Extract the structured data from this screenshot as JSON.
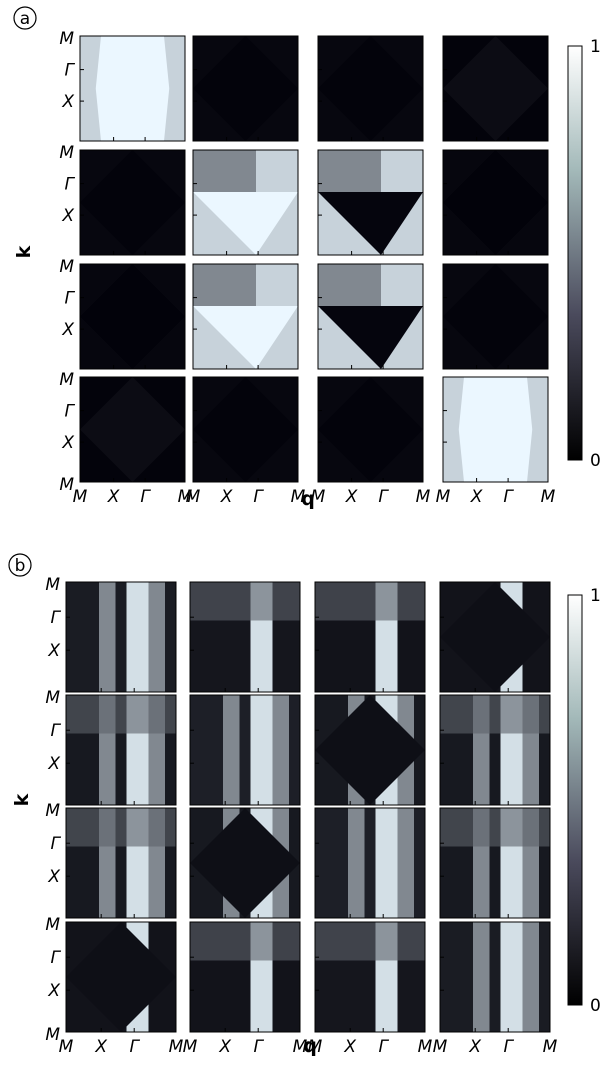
{
  "chart_data": [
    {
      "panel_label": "a",
      "type": "heatmap",
      "layout": "4x4 grid of heatmaps",
      "xlabel": "q",
      "ylabel": "k",
      "x_ticks": [
        "M",
        "X",
        "Γ",
        "M"
      ],
      "y_ticks": [
        "M",
        "Γ",
        "X",
        "M"
      ],
      "colorbar": {
        "min": 0,
        "max": 1,
        "ticks": [
          "0",
          "1"
        ],
        "colormap": "bone",
        "min_color": "#000000",
        "max_color": "#ffffff"
      },
      "grid_levels": [
        [
          0.85,
          0.12,
          0.12,
          0.05
        ],
        [
          0.12,
          0.65,
          0.55,
          0.1
        ],
        [
          0.1,
          0.55,
          0.65,
          0.12
        ],
        [
          0.05,
          0.12,
          0.12,
          0.85
        ]
      ]
    },
    {
      "panel_label": "b",
      "type": "heatmap",
      "layout": "4x4 grid of heatmaps",
      "xlabel": "q",
      "ylabel": "k",
      "x_ticks": [
        "M",
        "X",
        "Γ",
        "M"
      ],
      "y_ticks": [
        "M",
        "Γ",
        "X",
        "M"
      ],
      "colorbar": {
        "min": 0,
        "max": 1,
        "ticks": [
          "0",
          "1"
        ],
        "colormap": "bone",
        "min_color": "#000000",
        "max_color": "#ffffff"
      },
      "grid_levels": [
        [
          0.45,
          0.35,
          0.3,
          0.3
        ],
        [
          0.4,
          0.5,
          0.4,
          0.4
        ],
        [
          0.4,
          0.4,
          0.5,
          0.4
        ],
        [
          0.3,
          0.3,
          0.35,
          0.45
        ]
      ]
    }
  ]
}
